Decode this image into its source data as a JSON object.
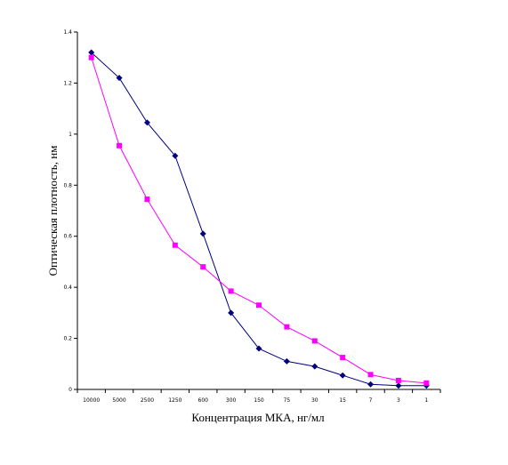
{
  "chart_data": {
    "type": "line",
    "title": "",
    "xlabel": "Концентрация МКА, нг/мл",
    "ylabel": "Оптическая плотность, нм",
    "categories": [
      "10000",
      "5000",
      "2500",
      "1250",
      "600",
      "300",
      "150",
      "75",
      "30",
      "15",
      "7",
      "3",
      "1"
    ],
    "ylim": [
      0,
      1.4
    ],
    "yticks": [
      "0",
      "0.2",
      "0.4",
      "0.6",
      "0.8",
      "1",
      "1.2",
      "1.4"
    ],
    "grid": false,
    "legend": "none",
    "series": [
      {
        "color": "#000080",
        "marker": "diamond",
        "values": [
          1.32,
          1.22,
          1.045,
          0.915,
          0.61,
          0.3,
          0.16,
          0.11,
          0.09,
          0.055,
          0.02,
          0.015,
          0.015
        ]
      },
      {
        "color": "#ff00ff",
        "marker": "square",
        "values": [
          1.3,
          0.955,
          0.745,
          0.565,
          0.48,
          0.385,
          0.33,
          0.245,
          0.19,
          0.125,
          0.058,
          0.035,
          0.025
        ]
      }
    ]
  }
}
